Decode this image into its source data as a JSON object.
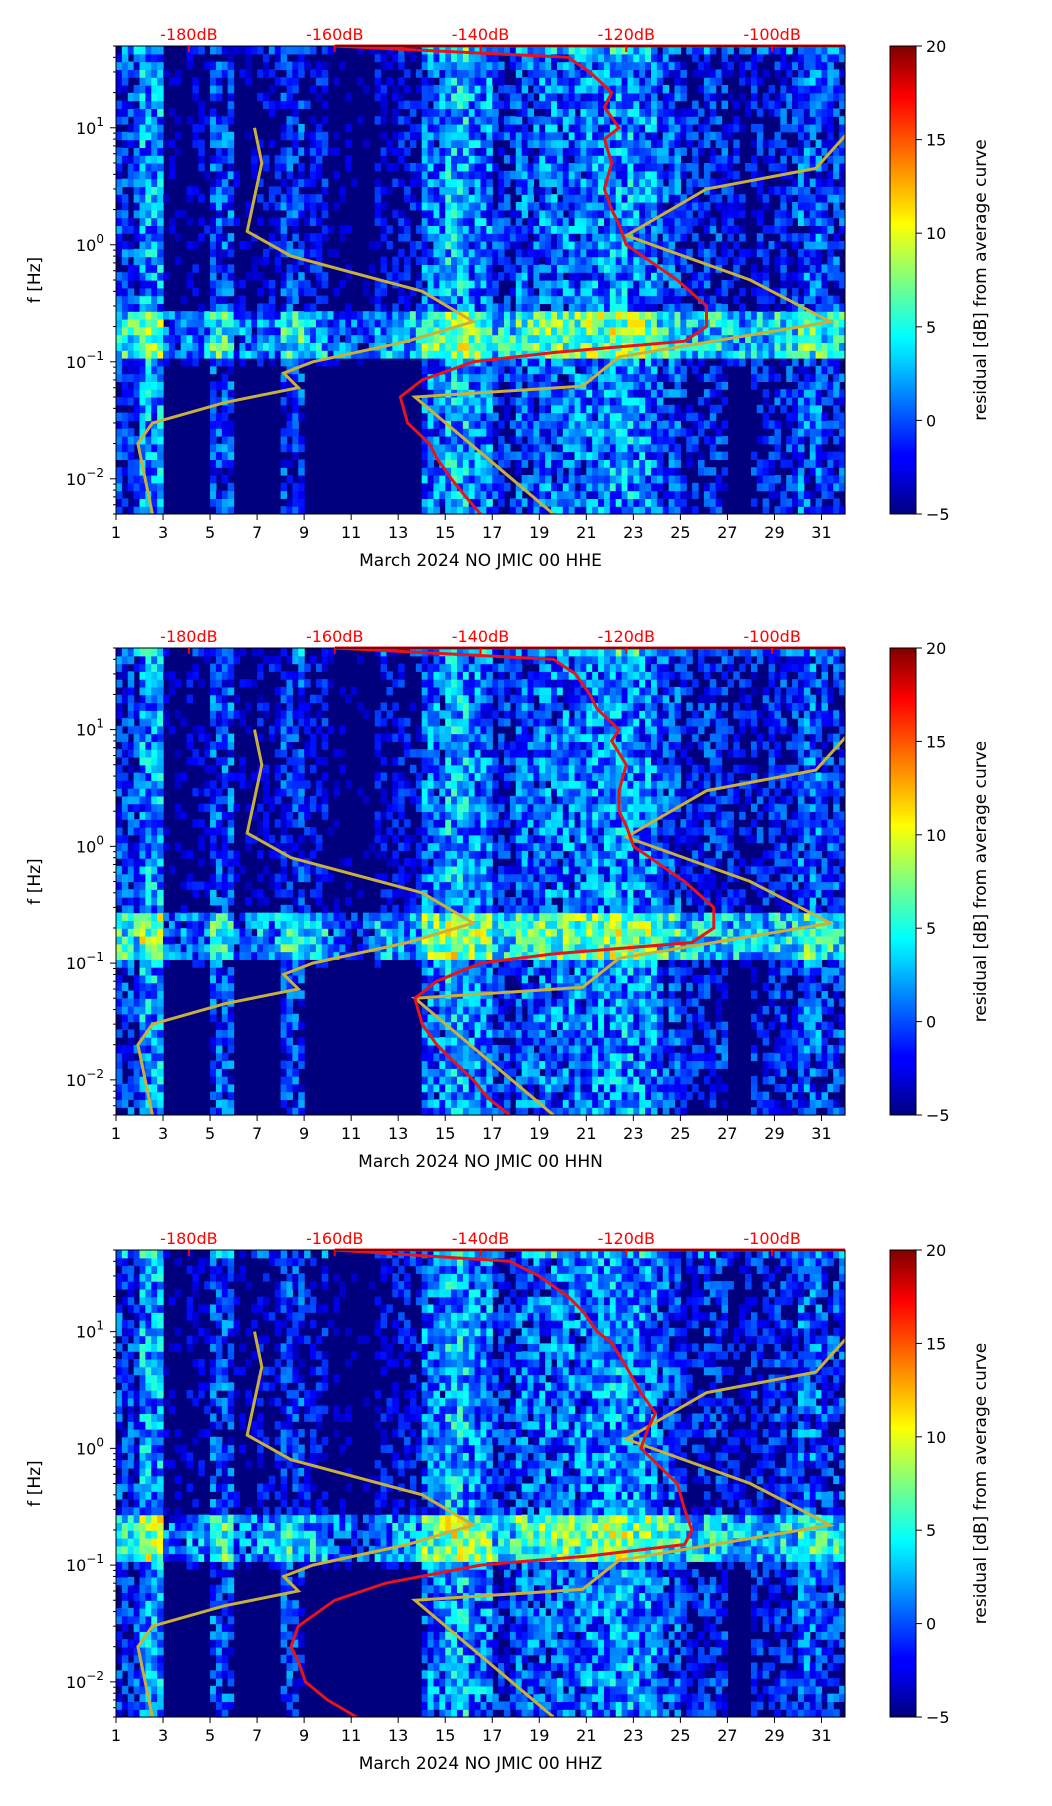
{
  "chart_data": [
    {
      "type": "heatmap",
      "title": "",
      "xlabel": "March 2024 NO JMIC 00 HHE",
      "ylabel": "f [Hz]",
      "x_ticks": [
        1,
        3,
        5,
        7,
        9,
        11,
        13,
        15,
        17,
        19,
        21,
        23,
        25,
        27,
        29,
        31
      ],
      "xlim": [
        1,
        32
      ],
      "ylim": [
        0.005,
        50
      ],
      "y_scale": "log",
      "y_ticks": [
        {
          "value": 0.01,
          "base": "10",
          "exp": "−2"
        },
        {
          "value": 0.1,
          "base": "10",
          "exp": "−1"
        },
        {
          "value": 1,
          "base": "10",
          "exp": "0"
        },
        {
          "value": 10,
          "base": "10",
          "exp": "1"
        }
      ],
      "top_axis": {
        "labels": [
          "-180dB",
          "-160dB",
          "-140dB",
          "-120dB",
          "-100dB"
        ],
        "values": [
          -180,
          -160,
          -140,
          -120,
          -100
        ],
        "range": [
          -190,
          -90
        ]
      },
      "colorbar": {
        "label": "residual [dB] from average curve",
        "ticks": [
          "20",
          "15",
          "10",
          "5",
          "0",
          "−5"
        ],
        "values": [
          20,
          15,
          10,
          5,
          0,
          -5
        ],
        "range": [
          -5,
          20
        ]
      },
      "red_curve_db": [
        {
          "f": 0.005,
          "db": -140
        },
        {
          "f": 0.007,
          "db": -142
        },
        {
          "f": 0.01,
          "db": -144
        },
        {
          "f": 0.015,
          "db": -146
        },
        {
          "f": 0.02,
          "db": -147
        },
        {
          "f": 0.03,
          "db": -150
        },
        {
          "f": 0.05,
          "db": -151
        },
        {
          "f": 0.07,
          "db": -148
        },
        {
          "f": 0.1,
          "db": -141
        },
        {
          "f": 0.12,
          "db": -130
        },
        {
          "f": 0.15,
          "db": -112
        },
        {
          "f": 0.2,
          "db": -109
        },
        {
          "f": 0.3,
          "db": -109
        },
        {
          "f": 0.5,
          "db": -113
        },
        {
          "f": 1,
          "db": -120
        },
        {
          "f": 1.5,
          "db": -121
        },
        {
          "f": 2,
          "db": -122
        },
        {
          "f": 3,
          "db": -123
        },
        {
          "f": 5,
          "db": -122
        },
        {
          "f": 8,
          "db": -123
        },
        {
          "f": 10,
          "db": -121
        },
        {
          "f": 15,
          "db": -123
        },
        {
          "f": 20,
          "db": -122
        },
        {
          "f": 30,
          "db": -125
        },
        {
          "f": 40,
          "db": -128
        },
        {
          "f": 50,
          "db": -160
        }
      ],
      "model_curve_db": [
        {
          "f": 0.005,
          "db": -185
        },
        {
          "f": 0.01,
          "db": -186
        },
        {
          "f": 0.02,
          "db": -187
        },
        {
          "f": 0.03,
          "db": -185
        },
        {
          "f": 0.045,
          "db": -175
        },
        {
          "f": 0.06,
          "db": -165
        },
        {
          "f": 0.08,
          "db": -167
        },
        {
          "f": 0.1,
          "db": -163
        },
        {
          "f": 0.15,
          "db": -150
        },
        {
          "f": 0.22,
          "db": -141
        },
        {
          "f": 0.4,
          "db": -148
        },
        {
          "f": 0.8,
          "db": -166
        },
        {
          "f": 1.3,
          "db": -172
        },
        {
          "f": 5,
          "db": -170
        },
        {
          "f": 10,
          "db": -171
        }
      ],
      "model_curve_high_db": [
        {
          "f": 0.005,
          "db": -130
        },
        {
          "f": 0.05,
          "db": -149
        },
        {
          "f": 0.062,
          "db": -126
        },
        {
          "f": 0.11,
          "db": -121
        },
        {
          "f": 0.22,
          "db": -92
        },
        {
          "f": 0.5,
          "db": -103
        },
        {
          "f": 1.2,
          "db": -120
        },
        {
          "f": 3,
          "db": -109
        },
        {
          "f": 4.5,
          "db": -94
        },
        {
          "f": 10,
          "db": -89
        }
      ]
    },
    {
      "type": "heatmap",
      "title": "",
      "xlabel": "March 2024 NO JMIC 00 HHN",
      "ylabel": "f [Hz]",
      "x_ticks": [
        1,
        3,
        5,
        7,
        9,
        11,
        13,
        15,
        17,
        19,
        21,
        23,
        25,
        27,
        29,
        31
      ],
      "xlim": [
        1,
        32
      ],
      "ylim": [
        0.005,
        50
      ],
      "y_scale": "log",
      "y_ticks": [
        {
          "value": 0.01,
          "base": "10",
          "exp": "−2"
        },
        {
          "value": 0.1,
          "base": "10",
          "exp": "−1"
        },
        {
          "value": 1,
          "base": "10",
          "exp": "0"
        },
        {
          "value": 10,
          "base": "10",
          "exp": "1"
        }
      ],
      "top_axis": {
        "labels": [
          "-180dB",
          "-160dB",
          "-140dB",
          "-120dB",
          "-100dB"
        ],
        "values": [
          -180,
          -160,
          -140,
          -120,
          -100
        ],
        "range": [
          -190,
          -90
        ]
      },
      "colorbar": {
        "label": "residual [dB] from average curve",
        "ticks": [
          "20",
          "15",
          "10",
          "5",
          "0",
          "−5"
        ],
        "values": [
          20,
          15,
          10,
          5,
          0,
          -5
        ],
        "range": [
          -5,
          20
        ]
      },
      "red_curve_db": [
        {
          "f": 0.005,
          "db": -136
        },
        {
          "f": 0.007,
          "db": -139
        },
        {
          "f": 0.01,
          "db": -141
        },
        {
          "f": 0.015,
          "db": -144
        },
        {
          "f": 0.02,
          "db": -146
        },
        {
          "f": 0.03,
          "db": -148
        },
        {
          "f": 0.05,
          "db": -149
        },
        {
          "f": 0.07,
          "db": -146
        },
        {
          "f": 0.1,
          "db": -140
        },
        {
          "f": 0.12,
          "db": -130
        },
        {
          "f": 0.15,
          "db": -111
        },
        {
          "f": 0.2,
          "db": -108
        },
        {
          "f": 0.3,
          "db": -108
        },
        {
          "f": 0.5,
          "db": -112
        },
        {
          "f": 1,
          "db": -119
        },
        {
          "f": 1.5,
          "db": -120
        },
        {
          "f": 2,
          "db": -121
        },
        {
          "f": 3,
          "db": -121
        },
        {
          "f": 5,
          "db": -120
        },
        {
          "f": 8,
          "db": -122
        },
        {
          "f": 10,
          "db": -121
        },
        {
          "f": 15,
          "db": -124
        },
        {
          "f": 20,
          "db": -125
        },
        {
          "f": 30,
          "db": -127
        },
        {
          "f": 40,
          "db": -130
        },
        {
          "f": 50,
          "db": -160
        }
      ],
      "model_curve_db": [
        {
          "f": 0.005,
          "db": -185
        },
        {
          "f": 0.01,
          "db": -186
        },
        {
          "f": 0.02,
          "db": -187
        },
        {
          "f": 0.03,
          "db": -185
        },
        {
          "f": 0.045,
          "db": -175
        },
        {
          "f": 0.06,
          "db": -165
        },
        {
          "f": 0.08,
          "db": -167
        },
        {
          "f": 0.1,
          "db": -163
        },
        {
          "f": 0.15,
          "db": -150
        },
        {
          "f": 0.22,
          "db": -141
        },
        {
          "f": 0.4,
          "db": -148
        },
        {
          "f": 0.8,
          "db": -166
        },
        {
          "f": 1.3,
          "db": -172
        },
        {
          "f": 5,
          "db": -170
        },
        {
          "f": 10,
          "db": -171
        }
      ],
      "model_curve_high_db": [
        {
          "f": 0.005,
          "db": -130
        },
        {
          "f": 0.05,
          "db": -149
        },
        {
          "f": 0.062,
          "db": -126
        },
        {
          "f": 0.11,
          "db": -121
        },
        {
          "f": 0.22,
          "db": -92
        },
        {
          "f": 0.5,
          "db": -103
        },
        {
          "f": 1.2,
          "db": -120
        },
        {
          "f": 3,
          "db": -109
        },
        {
          "f": 4.5,
          "db": -94
        },
        {
          "f": 10,
          "db": -89
        }
      ]
    },
    {
      "type": "heatmap",
      "title": "",
      "xlabel": "March 2024 NO JMIC 00 HHZ",
      "ylabel": "f [Hz]",
      "x_ticks": [
        1,
        3,
        5,
        7,
        9,
        11,
        13,
        15,
        17,
        19,
        21,
        23,
        25,
        27,
        29,
        31
      ],
      "xlim": [
        1,
        32
      ],
      "ylim": [
        0.005,
        50
      ],
      "y_scale": "log",
      "y_ticks": [
        {
          "value": 0.01,
          "base": "10",
          "exp": "−2"
        },
        {
          "value": 0.1,
          "base": "10",
          "exp": "−1"
        },
        {
          "value": 1,
          "base": "10",
          "exp": "0"
        },
        {
          "value": 10,
          "base": "10",
          "exp": "1"
        }
      ],
      "top_axis": {
        "labels": [
          "-180dB",
          "-160dB",
          "-140dB",
          "-120dB",
          "-100dB"
        ],
        "values": [
          -180,
          -160,
          -140,
          -120,
          -100
        ],
        "range": [
          -190,
          -90
        ]
      },
      "colorbar": {
        "label": "residual [dB] from average curve",
        "ticks": [
          "20",
          "15",
          "10",
          "5",
          "0",
          "−5"
        ],
        "values": [
          20,
          15,
          10,
          5,
          0,
          -5
        ],
        "range": [
          -5,
          20
        ]
      },
      "red_curve_db": [
        {
          "f": 0.005,
          "db": -157
        },
        {
          "f": 0.007,
          "db": -161
        },
        {
          "f": 0.01,
          "db": -164
        },
        {
          "f": 0.015,
          "db": -165
        },
        {
          "f": 0.02,
          "db": -166
        },
        {
          "f": 0.03,
          "db": -165
        },
        {
          "f": 0.05,
          "db": -160
        },
        {
          "f": 0.07,
          "db": -153
        },
        {
          "f": 0.1,
          "db": -140
        },
        {
          "f": 0.12,
          "db": -125
        },
        {
          "f": 0.15,
          "db": -112
        },
        {
          "f": 0.2,
          "db": -111
        },
        {
          "f": 0.3,
          "db": -112
        },
        {
          "f": 0.5,
          "db": -113
        },
        {
          "f": 1,
          "db": -118
        },
        {
          "f": 1.5,
          "db": -117
        },
        {
          "f": 2,
          "db": -116
        },
        {
          "f": 3,
          "db": -118
        },
        {
          "f": 5,
          "db": -120
        },
        {
          "f": 8,
          "db": -122
        },
        {
          "f": 10,
          "db": -124
        },
        {
          "f": 15,
          "db": -126
        },
        {
          "f": 20,
          "db": -128
        },
        {
          "f": 30,
          "db": -132
        },
        {
          "f": 40,
          "db": -136
        },
        {
          "f": 50,
          "db": -160
        }
      ],
      "model_curve_db": [
        {
          "f": 0.005,
          "db": -185
        },
        {
          "f": 0.01,
          "db": -186
        },
        {
          "f": 0.02,
          "db": -187
        },
        {
          "f": 0.03,
          "db": -185
        },
        {
          "f": 0.045,
          "db": -175
        },
        {
          "f": 0.06,
          "db": -165
        },
        {
          "f": 0.08,
          "db": -167
        },
        {
          "f": 0.1,
          "db": -163
        },
        {
          "f": 0.15,
          "db": -150
        },
        {
          "f": 0.22,
          "db": -141
        },
        {
          "f": 0.4,
          "db": -148
        },
        {
          "f": 0.8,
          "db": -166
        },
        {
          "f": 1.3,
          "db": -172
        },
        {
          "f": 5,
          "db": -170
        },
        {
          "f": 10,
          "db": -171
        }
      ],
      "model_curve_high_db": [
        {
          "f": 0.005,
          "db": -130
        },
        {
          "f": 0.05,
          "db": -149
        },
        {
          "f": 0.062,
          "db": -126
        },
        {
          "f": 0.11,
          "db": -121
        },
        {
          "f": 0.22,
          "db": -92
        },
        {
          "f": 0.5,
          "db": -103
        },
        {
          "f": 1.2,
          "db": -120
        },
        {
          "f": 3,
          "db": -109
        },
        {
          "f": 4.5,
          "db": -94
        },
        {
          "f": 10,
          "db": -89
        }
      ]
    }
  ],
  "colors": {
    "measured_curve": "#e8141c",
    "model_curve": "#c9b03a",
    "background_low": "#00007f",
    "top_axis_text": "#ff0000"
  }
}
